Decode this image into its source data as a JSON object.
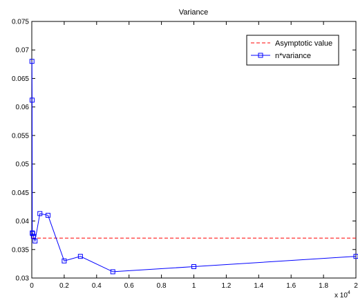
{
  "chart_data": {
    "type": "line",
    "title": "Variance",
    "xlabel": "",
    "ylabel": "",
    "xlim": [
      0,
      20000
    ],
    "ylim": [
      0.03,
      0.075
    ],
    "x_exponent_label": "x 10",
    "x_exponent_power": "4",
    "xticks": [
      0,
      2000,
      4000,
      6000,
      8000,
      10000,
      12000,
      14000,
      16000,
      18000,
      20000
    ],
    "xtick_labels": [
      "0",
      "0.2",
      "0.4",
      "0.6",
      "0.8",
      "1",
      "1.2",
      "1.4",
      "1.6",
      "1.8",
      "2"
    ],
    "yticks": [
      0.03,
      0.035,
      0.04,
      0.045,
      0.05,
      0.055,
      0.06,
      0.065,
      0.07,
      0.075
    ],
    "ytick_labels": [
      "0.03",
      "0.035",
      "0.04",
      "0.045",
      "0.05",
      "0.055",
      "0.06",
      "0.065",
      "0.07",
      "0.075"
    ],
    "grid": false,
    "legend_position": "top-right",
    "series": [
      {
        "name": "Asymptotic value",
        "style": "dashed",
        "marker": "none",
        "color": "#ff0000",
        "x": [
          0,
          20000
        ],
        "y": [
          0.037,
          0.037
        ]
      },
      {
        "name": "n*variance",
        "style": "solid",
        "marker": "square",
        "color": "#0000ff",
        "x": [
          10,
          20,
          30,
          50,
          100,
          200,
          500,
          1000,
          2000,
          3000,
          5000,
          10000,
          20000
        ],
        "y": [
          0.068,
          0.0612,
          0.0379,
          0.0378,
          0.0373,
          0.0365,
          0.0413,
          0.041,
          0.033,
          0.0338,
          0.0311,
          0.032,
          0.0338
        ]
      }
    ]
  }
}
